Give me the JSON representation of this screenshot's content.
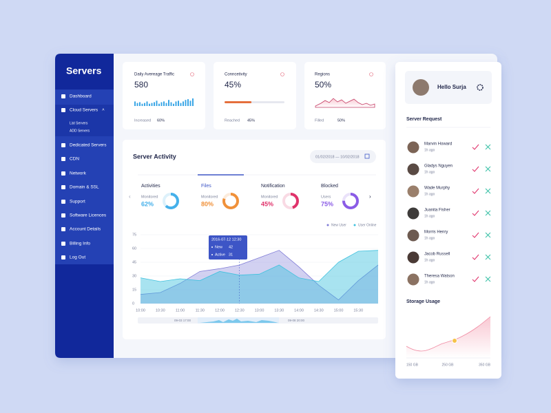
{
  "brand": "Servers",
  "menu": [
    "Dashboard",
    "Cloud Servers",
    "Dedicated Servers",
    "CDN",
    "Network",
    "Domain & SSL",
    "Support",
    "Software Licences",
    "Account Details",
    "Billing Info",
    "Log Out"
  ],
  "submenu": [
    "List Servers",
    "ADD Servers"
  ],
  "stats": [
    {
      "title": "Daily Avereage Traffic",
      "value": "580",
      "note": "Increased",
      "note_value": "60%",
      "bars": [
        6,
        4,
        5,
        3,
        4,
        6,
        3,
        4,
        5,
        7,
        3,
        5,
        6,
        4,
        8,
        5,
        3,
        6,
        7,
        4,
        6,
        8,
        9,
        7,
        10
      ]
    },
    {
      "title": "Conncetivity",
      "value": {
        "value": 45,
        "label": "45%"
      },
      "note": "Reached",
      "note_value": "45%"
    },
    {
      "title": "Regions",
      "value": "50%",
      "note": "Filled",
      "note_value": "50%"
    }
  ],
  "activity": {
    "title": "Server Activity",
    "date_range": "01/02/2018 — 10/02/2018",
    "tabs": [
      {
        "name": "Activities",
        "caption": "Monitored",
        "value": {
          "value": 62,
          "label": "62%"
        },
        "color": "#45b0ea"
      },
      {
        "name": "Files",
        "caption": "Monitored",
        "value": {
          "value": 80,
          "label": "80%"
        },
        "color": "#f0913a"
      },
      {
        "name": "Notification",
        "caption": "Monitored",
        "value": {
          "value": 45,
          "label": "45%"
        },
        "color": "#e0336b"
      },
      {
        "name": "Blocked",
        "caption": "Users",
        "value": {
          "value": 75,
          "label": "75%"
        },
        "color": "#8b5ce6"
      }
    ],
    "chart": {
      "type": "area",
      "categories": [
        "10:00",
        "10:30",
        "11:00",
        "11:30",
        "12:00",
        "12:30",
        "13:00",
        "13:30",
        "14:00",
        "14:30",
        "15:00",
        "15:30",
        null
      ],
      "series": [
        {
          "name": "New User",
          "color": "#7f7bd6",
          "values": [
            10,
            12,
            22,
            35,
            38,
            42,
            50,
            58,
            40,
            20,
            4,
            25,
            42
          ]
        },
        {
          "name": "User Online",
          "color": "#3fc1de",
          "values": [
            28,
            24,
            27,
            25,
            35,
            31,
            32,
            42,
            28,
            24,
            45,
            57,
            58
          ]
        }
      ],
      "ylim": [
        0,
        75
      ],
      "yticks": [
        0,
        15,
        30,
        45,
        60,
        75
      ],
      "tooltip": {
        "title": "2016-07-12 12:30",
        "rows": [
          {
            "name": "New",
            "value": "42"
          },
          {
            "name": "Active",
            "value": "31"
          }
        ]
      },
      "brush_labels": [
        "09-03 17:00",
        "09-08 20:00"
      ]
    }
  },
  "profile": {
    "greeting": "Hello Surja"
  },
  "requests": {
    "title": "Server Request",
    "items": [
      {
        "name": "Marvin Howard",
        "time": "1h ago"
      },
      {
        "name": "Gladys Nguyen",
        "time": "1h ago"
      },
      {
        "name": "Wade Murphy",
        "time": "1h ago"
      },
      {
        "name": "Juanita Fisher",
        "time": "1h ago"
      },
      {
        "name": "Morris Henry",
        "time": "1h ago"
      },
      {
        "name": "Jacob Russell",
        "time": "1h ago"
      },
      {
        "name": "Theresa Watson",
        "time": "1h ago"
      }
    ]
  },
  "storage": {
    "title": "Storage Usage",
    "xticks": [
      "150 GB",
      "250 GB",
      "350 GB"
    ]
  }
}
